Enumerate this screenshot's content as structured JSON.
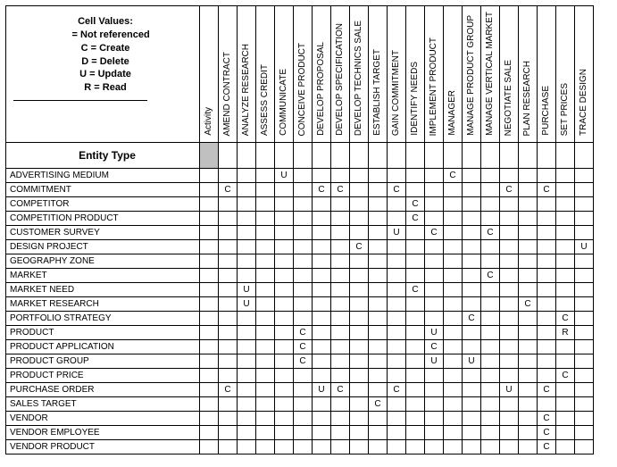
{
  "legend": {
    "title": "Cell Values:",
    "lines": [
      "    = Not referenced",
      "C = Create",
      "D = Delete",
      "U = Update",
      "R = Read"
    ]
  },
  "cornerLabels": {
    "activity": "Activity",
    "entityType": "Entity Type"
  },
  "columns": [
    "AMEND CONTRACT",
    "ANALYZE RESEARCH",
    "ASSESS CREDIT",
    "COMMUNICATE",
    "CONCEIVE PRODUCT",
    "DEVELOP PROPOSAL",
    "DEVELOP SPECIFICATION",
    "DEVELOP TECHNICS SALE",
    "ESTABLISH TARGET",
    "GAIN COMMITMENT",
    "IDENTIFY NEEDS",
    "IMPLEMENT PRODUCT",
    "MANAGER",
    "MANAGE PRODUCT GROUP",
    "MANAGE VERTICAL MARKET",
    "NEGOTIATE SALE",
    "PLAN RESEARCH",
    "PURCHASE",
    "SET PRICES",
    "TRACE DESIGN"
  ],
  "rows": [
    "ADVERTISING MEDIUM",
    "COMMITMENT",
    "COMPETITOR",
    "COMPETITION PRODUCT",
    "CUSTOMER SURVEY",
    "DESIGN PROJECT",
    "GEOGRAPHY ZONE",
    "MARKET",
    "MARKET NEED",
    "MARKET RESEARCH",
    "PORTFOLIO STRATEGY",
    "PRODUCT",
    "PRODUCT APPLICATION",
    "PRODUCT GROUP",
    "PRODUCT PRICE",
    "PURCHASE ORDER",
    "SALES TARGET",
    "VENDOR",
    "VENDOR EMPLOYEE",
    "VENDOR PRODUCT"
  ],
  "cells": {
    "0": {
      "3": "U",
      "12": "C"
    },
    "1": {
      "0": "C",
      "5": "C",
      "6": "C",
      "9": "C",
      "15": "C",
      "17": "C"
    },
    "2": {
      "10": "C"
    },
    "3": {
      "10": "C"
    },
    "4": {
      "9": "U",
      "11": "C",
      "14": "C"
    },
    "5": {
      "7": "C",
      "19": "U"
    },
    "6": {},
    "7": {
      "14": "C"
    },
    "8": {
      "1": "U",
      "10": "C"
    },
    "9": {
      "1": "U",
      "16": "C"
    },
    "10": {
      "13": "C",
      "18": "C"
    },
    "11": {
      "4": "C",
      "11": "U",
      "18": "R"
    },
    "12": {
      "4": "C",
      "11": "C"
    },
    "13": {
      "4": "C",
      "11": "U",
      "13": "U"
    },
    "14": {
      "18": "C"
    },
    "15": {
      "0": "C",
      "5": "U",
      "6": "C",
      "9": "C",
      "15": "U",
      "17": "C"
    },
    "16": {
      "8": "C"
    },
    "17": {
      "17": "C"
    },
    "18": {
      "17": "C"
    },
    "19": {
      "17": "C"
    }
  },
  "style": {
    "background": "#ffffff",
    "border": "#000000",
    "greyFill": "#c0c0c0",
    "activityColFill": "#dcdcdc",
    "fontFamily": "Arial",
    "headerFontSize": 10,
    "cellFontSize": 10,
    "legendFontSize": 11,
    "colWidthPx": 20,
    "rowHeightPx": 15,
    "labelColWidthPx": 216
  }
}
